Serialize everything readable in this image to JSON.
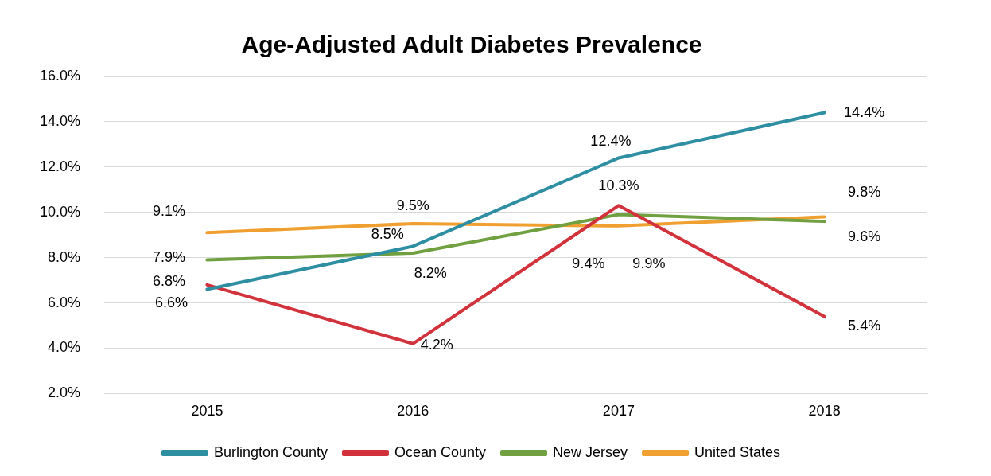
{
  "chart_data": {
    "type": "line",
    "title": "Age-Adjusted Adult Diabetes Prevalence",
    "categories": [
      "2015",
      "2016",
      "2017",
      "2018"
    ],
    "series": [
      {
        "name": "Burlington County",
        "color": "#2e8fa3",
        "values": [
          6.6,
          8.5,
          12.4,
          14.4
        ],
        "value_labels": [
          "6.6%",
          "8.5%",
          "12.4%",
          "14.4%"
        ]
      },
      {
        "name": "Ocean County",
        "color": "#d1323b",
        "values": [
          6.8,
          4.2,
          10.3,
          5.4
        ],
        "value_labels": [
          "6.8%",
          "4.2%",
          "10.3%",
          "5.4%"
        ]
      },
      {
        "name": "New Jersey",
        "color": "#70a040",
        "values": [
          7.9,
          8.2,
          9.9,
          9.6
        ],
        "value_labels": [
          "7.9%",
          "8.2%",
          "9.9%",
          "9.6%"
        ]
      },
      {
        "name": "United States",
        "color": "#f0a030",
        "values": [
          9.1,
          9.5,
          9.4,
          9.8
        ],
        "value_labels": [
          "9.1%",
          "9.5%",
          "9.4%",
          "9.8%"
        ]
      }
    ],
    "ylim": [
      2,
      16
    ],
    "yticks": [
      {
        "value": 2,
        "label": "2.0%"
      },
      {
        "value": 4,
        "label": "4.0%"
      },
      {
        "value": 6,
        "label": "6.0%"
      },
      {
        "value": 8,
        "label": "8.0%"
      },
      {
        "value": 10,
        "label": "10.0%"
      },
      {
        "value": 12,
        "label": "12.0%"
      },
      {
        "value": 14,
        "label": "14.0%"
      },
      {
        "value": 16,
        "label": "16.0%"
      }
    ],
    "grid": "y",
    "legend": "bottom",
    "marker": "none",
    "line_style": "solid"
  }
}
